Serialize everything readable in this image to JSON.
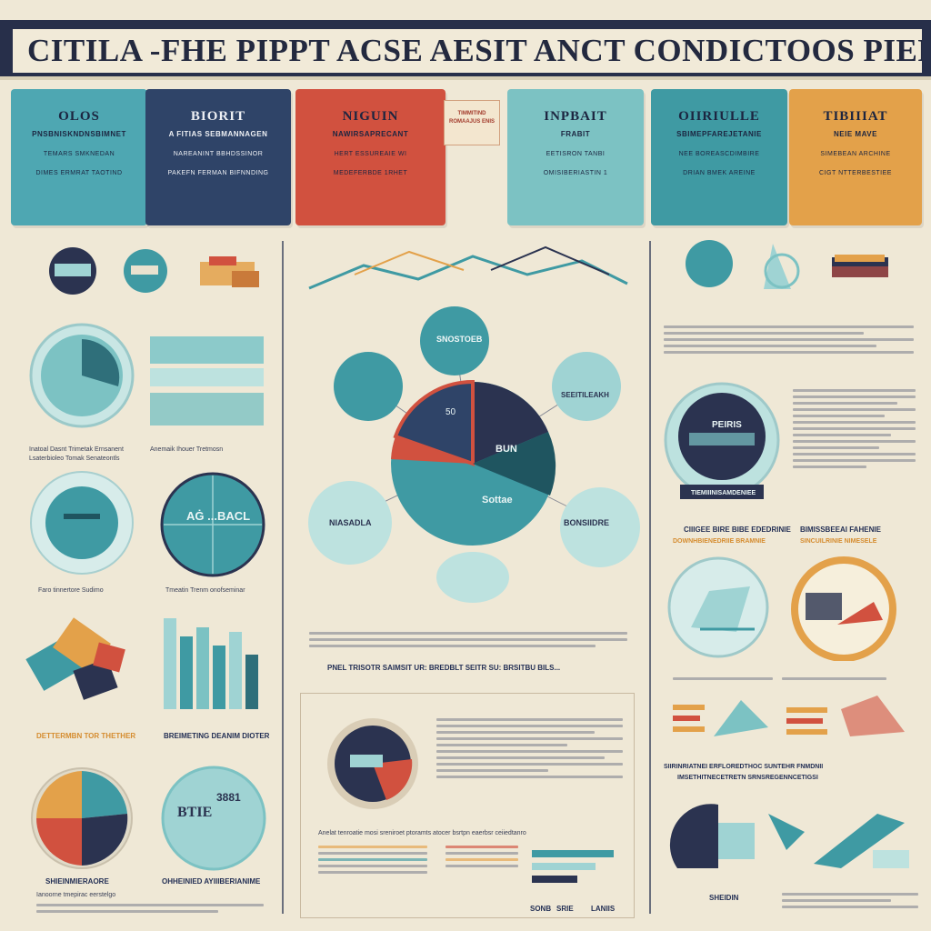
{
  "header": {
    "title": "CITILA -FHE PIPPT ACSE AESIT ANCT CONDICTOOS PIEPRFORMANCE"
  },
  "cards": [
    {
      "title": "OLOS",
      "subtitle": "PNSBNISKNDNSBIMNET",
      "line1": "TEMARS SMKNEDAN",
      "line2": "DIMES ERMRAT TAOTIND",
      "color": "#4ea7b2"
    },
    {
      "title": "BIORIT",
      "subtitle": "A FITIAS SEBMANNAGEN",
      "line1": "NAREANINT BBHDSSINOR",
      "line2": "PAKEFN FERMAN BIFNNDING",
      "color": "#2f4468"
    },
    {
      "title": "NIGUIN",
      "subtitle": "NAWIRSAPRECANT",
      "line1": "HERT ESSUREAIE WI",
      "line2": "MEDEFERBDE 1RHET",
      "badge": "TIMMITIND ROMAAJUS ENIS",
      "color": "#d1513f"
    },
    {
      "title": "INPBAIT",
      "subtitle": "FRABIT",
      "line1": "EETISRON TANBI",
      "line2": "OMISIBERIASTIN 1",
      "color": "#7cc2c3"
    },
    {
      "title": "OIIRIULLE",
      "subtitle": "SBIMEPFAREJETANIE",
      "line1": "NEE BOREASCDIMBIRE",
      "line2": "DRIAN BMEK AREINE",
      "color": "#3f9aa3"
    },
    {
      "title": "TIBIIIAT",
      "subtitle": "NEIE MAVE",
      "line1": "SIMEBEAN ARCHINE",
      "line2": "CIGT NTTERBESTIEE",
      "color": "#e3a14a"
    }
  ],
  "left_panel": {
    "row1_text_a": "Inatoal Dasnt Trimetak Ernsanent",
    "row1_text_b": "Lsaterbioleo Tomak Senateontls",
    "row1_text_c": "Anemaik Ihouer Tretmosn",
    "row2_label_center": "AĠ ...BACL",
    "row2_text_a": "Faro tinnertore Sudimo",
    "row2_text_b": "Tmeatin Trenm onofseminar",
    "row3_caption_a": "DETTERMBN TOR THETHER",
    "row3_caption_b": "BREIMETING DEANIM DIOTER",
    "row4_label": "BTIE",
    "row4_label_b": "3881",
    "row4_caption_a": "SHIEINMIERAORE",
    "row4_caption_b": "OHHEINIED AYIIIBERIANIME",
    "row4_text": "Ianoorne tmepirac eerstelgo"
  },
  "center": {
    "node_top": "SNOSTOEB",
    "node_left": "",
    "node_right": "SEEITILEAKH",
    "node_bottom_left": "NIASADLA",
    "node_bottom_right": "BONSIIDRE",
    "pie_label_a": "50",
    "pie_label_b": "BUN",
    "pie_label_c": "Sottae",
    "summary_line": "PNEL TRISOTR SAIMSIT UR: BREDBLT SEITR SU: BRSITBU BILS...",
    "paragraph": "Anelat tenroatie mosi sreniroet ptoramts atocer bsrtpn eaerbsr ceiiedtanro"
  },
  "right_panel": {
    "dial_label": "PEIRIS",
    "dial_caption": "TIEMIIINISAMDENIEE",
    "caption_a": "CIIIGEE BIRE BIBE EDEDRINIE",
    "caption_b": "DOWNHBIENEDRIIE BRAMNIE",
    "caption_c": "BIMISSBEEAI FAHENIE",
    "caption_d": "SINCUILRINIE NIMESELE",
    "headline": "SIIRINRIATNEI ERFLOREDTHOC SUNTEHR FNMDNII",
    "headline_b": "IMSETHITNECETRETN SRNSREGENNCETIGSI",
    "bottom_caption": "SHEIDIN"
  },
  "bottom_center": {
    "label_a": "SONB",
    "label_b": "SRIE",
    "label_c": "LANIIS"
  },
  "palette": {
    "teal": "#3f9aa3",
    "navy": "#2b3350",
    "red": "#d1513f",
    "orange": "#e3a14a",
    "cream": "#efe8d6",
    "light_teal": "#9fd3d3"
  }
}
